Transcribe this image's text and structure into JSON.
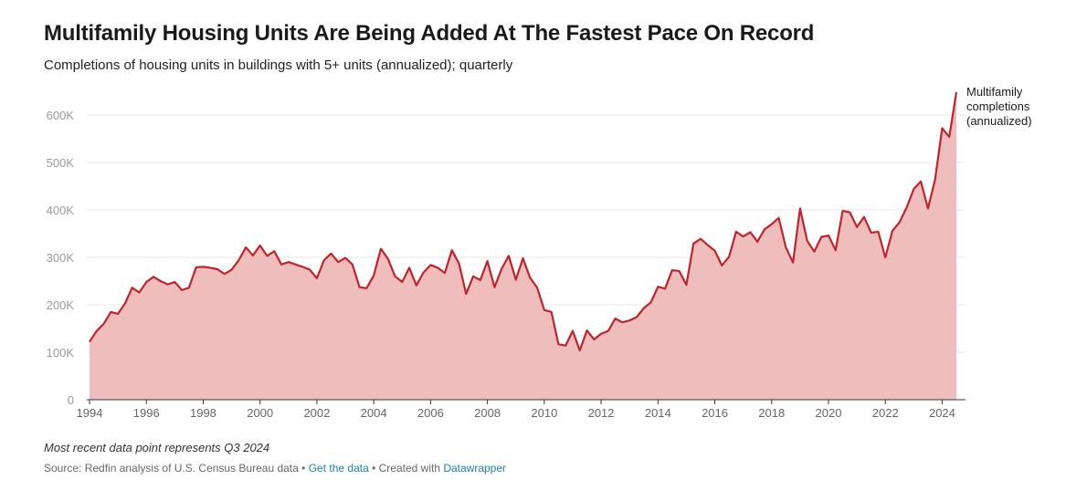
{
  "header": {
    "title": "Multifamily Housing Units Are Being Added At The Fastest Pace On Record",
    "subtitle": "Completions of housing units in buildings with 5+ units (annualized); quarterly"
  },
  "footer": {
    "note": "Most recent data point represents Q3 2024",
    "source_prefix": "Source: Redfin analysis of U.S. Census Bureau data",
    "separator": " • ",
    "get_data_link": "Get the data",
    "created_with": "Created with ",
    "datawrapper_link": "Datawrapper"
  },
  "colors": {
    "line": "#c0242a",
    "area": "#f0bdbd",
    "grid": "#e6e6e6",
    "axis": "#333333"
  },
  "chart_data": {
    "type": "area",
    "title": "Multifamily Housing Units Are Being Added At The Fastest Pace On Record",
    "subtitle": "Completions of housing units in buildings with 5+ units (annualized); quarterly",
    "xlim": [
      1994,
      2024.5
    ],
    "ylim": [
      0,
      650000
    ],
    "x_ticks": [
      1994,
      1996,
      1998,
      2000,
      2002,
      2004,
      2006,
      2008,
      2010,
      2012,
      2014,
      2016,
      2018,
      2020,
      2022,
      2024
    ],
    "x_tick_labels": [
      "1994",
      "1996",
      "1998",
      "2000",
      "2002",
      "2004",
      "2006",
      "2008",
      "2010",
      "2012",
      "2014",
      "2016",
      "2018",
      "2020",
      "2022",
      "2024"
    ],
    "y_ticks": [
      0,
      100000,
      200000,
      300000,
      400000,
      500000,
      600000
    ],
    "y_tick_labels": [
      "0",
      "100K",
      "200K",
      "300K",
      "400K",
      "500K",
      "600K"
    ],
    "grid": true,
    "series": [
      {
        "name": "Multifamily completions (annualized)",
        "label_lines": [
          "Multifamily",
          "completions",
          "(annualized)"
        ],
        "start_year": 1994,
        "frequency": "quarterly",
        "values": [
          122000,
          145000,
          160000,
          185000,
          181000,
          203000,
          236000,
          226000,
          248000,
          259000,
          250000,
          243000,
          248000,
          231000,
          236000,
          279000,
          280000,
          278000,
          275000,
          265000,
          274000,
          294000,
          321000,
          304000,
          325000,
          303000,
          313000,
          285000,
          290000,
          285000,
          280000,
          274000,
          256000,
          294000,
          308000,
          290000,
          299000,
          285000,
          237000,
          235000,
          262000,
          318000,
          297000,
          260000,
          248000,
          278000,
          241000,
          268000,
          284000,
          278000,
          267000,
          315000,
          287000,
          223000,
          260000,
          252000,
          292000,
          237000,
          276000,
          303000,
          253000,
          298000,
          257000,
          236000,
          189000,
          185000,
          117000,
          114000,
          145000,
          104000,
          146000,
          127000,
          139000,
          145000,
          171000,
          163000,
          167000,
          174000,
          193000,
          205000,
          238000,
          234000,
          273000,
          271000,
          242000,
          329000,
          339000,
          326000,
          314000,
          283000,
          301000,
          354000,
          344000,
          353000,
          333000,
          359000,
          370000,
          383000,
          321000,
          289000,
          403000,
          335000,
          312000,
          343000,
          346000,
          315000,
          398000,
          395000,
          364000,
          385000,
          352000,
          354000,
          300000,
          356000,
          374000,
          405000,
          444000,
          460000,
          403000,
          464000,
          572000,
          554000,
          648000
        ]
      }
    ],
    "note": "Most recent data point represents Q3 2024"
  }
}
